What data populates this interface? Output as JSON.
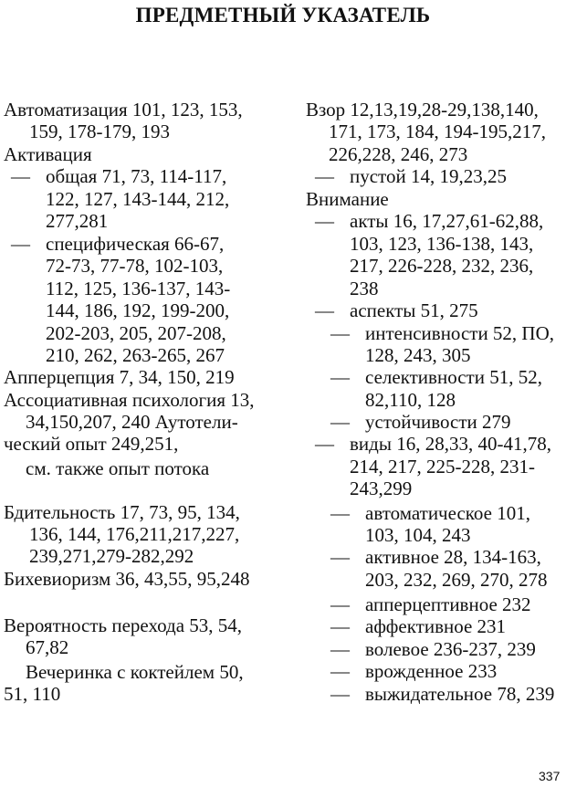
{
  "title": "ПРЕДМЕТНЫЙ УКАЗАТЕЛЬ",
  "columns": {
    "left": [
      "Автоматизация 101, 123, 153,",
      "159, 178-179, 193",
      "Активация",
      "— общая 71, 73, 114-117,",
      "122, 127, 143-144, 212,",
      "277,281",
      "— специфическая 66-67,",
      "72-73, 77-78, 102-103,",
      "112, 125, 136-137, 143-",
      "144, 186, 192, 199-200,",
      "202-203, 205, 207-208,",
      "210, 262, 263-265, 267",
      "Апперцепция 7, 34, 150, 219",
      "Ассоциативная психология 13,",
      "34,150,207, 240 Аутотели-",
      "ческий опыт 249,251,",
      "см. также опыт потока",
      "Бдительность 17, 73, 95, 134,",
      "136, 144, 176,211,217,227,",
      "239,271,279-282,292",
      "Бихевиоризм 36, 43,55, 95,248",
      "Вероятность перехода 53, 54,",
      "67,82",
      "Вечеринка с коктейлем 50,",
      "51, 110"
    ],
    "right": [
      "Взор  12,13,19,28-29,138,140,",
      "171, 173, 184, 194-195,217,",
      "226,228, 246, 273",
      "— пустой 14, 19,23,25",
      "Внимание",
      "— акты 16, 17,27,61-62,88,",
      "103, 123, 136-138, 143,",
      "217, 226-228, 232, 236,",
      "238",
      "— аспекты 51, 275",
      "— интенсивности 52, ПО,",
      "128, 243, 305",
      "— селективности 51, 52,",
      "82,110, 128",
      "— устойчивости 279",
      "— виды 16, 28,33, 40-41,78,",
      "214, 217, 225-228, 231-",
      "243,299",
      "— автоматическое 101,",
      "103, 104, 243",
      "— активное 28, 134-163,",
      "203, 232, 269, 270, 278",
      "— апперцептивное 232",
      "— аффективное 231",
      "— волевое 236-237, 239",
      "— врожденное 233",
      "— выжидательное 78, 239"
    ]
  },
  "page_number": "337"
}
